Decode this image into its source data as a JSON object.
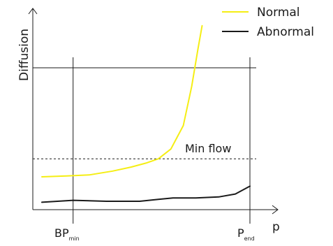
{
  "chart_data": {
    "type": "line",
    "title": "",
    "ylabel": "Diffusion",
    "xlabel": "p",
    "xlim": [
      0,
      10
    ],
    "ylim": [
      0,
      10
    ],
    "grid": false,
    "legend_placement": "top-right",
    "series": [
      {
        "name": "Normal",
        "color": "#f5ee14",
        "x": [
          0.0,
          1.2,
          2.3,
          3.4,
          4.3,
          5.0,
          5.6,
          6.2,
          6.8,
          7.2,
          7.5,
          7.7
        ],
        "y": [
          1.68,
          1.72,
          1.78,
          1.97,
          2.18,
          2.38,
          2.6,
          3.1,
          4.3,
          6.3,
          8.2,
          9.4
        ]
      },
      {
        "name": "Abnormal",
        "color": "#1a1a1a",
        "x": [
          0.0,
          1.5,
          3.1,
          4.7,
          5.6,
          6.3,
          7.4,
          8.5,
          9.3,
          10.0
        ],
        "y": [
          0.38,
          0.48,
          0.43,
          0.43,
          0.53,
          0.6,
          0.6,
          0.65,
          0.8,
          1.2
        ]
      }
    ],
    "reference_lines": [
      {
        "axis": "y",
        "value": 7.25,
        "style": "solid",
        "label": ""
      },
      {
        "axis": "y",
        "value": 2.6,
        "style": "dashed",
        "label": "Min flow"
      },
      {
        "axis": "x",
        "value": 1.5,
        "style": "solid",
        "label": "BP",
        "label_sub": "min"
      },
      {
        "axis": "x",
        "value": 10.0,
        "style": "solid",
        "label": "P",
        "label_sub": "end"
      }
    ]
  }
}
